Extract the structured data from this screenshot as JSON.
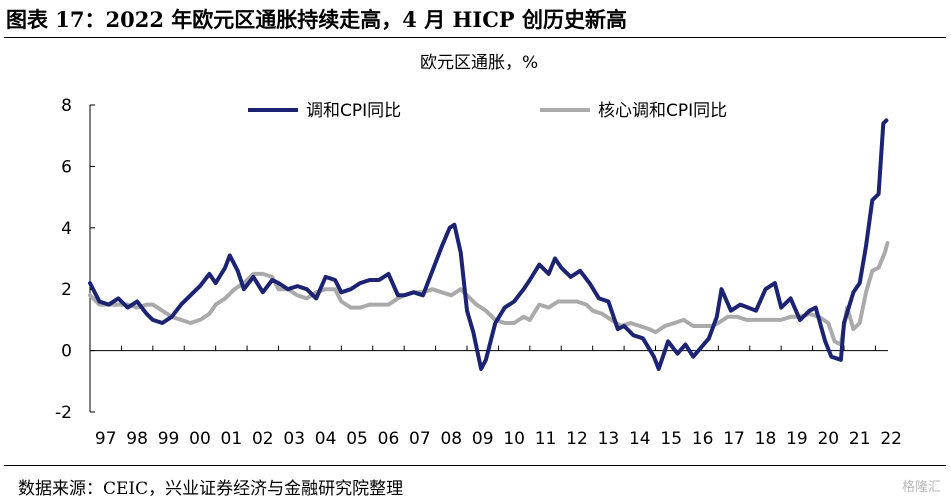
{
  "figure_title": "图表 17：2022 年欧元区通胀持续走高，4 月 HICP 创历史新高",
  "source_note": "数据来源：CEIC，兴业证券经济与金融研究院整理",
  "watermark": "格隆汇",
  "chart_data": {
    "type": "line",
    "title": "",
    "subtitle": "欧元区通胀，%",
    "xlabel": "",
    "ylabel": "",
    "ylim": [
      -2,
      8
    ],
    "yticks": [
      -2,
      0,
      2,
      4,
      6,
      8
    ],
    "x_range": [
      1997.0,
      2022.4
    ],
    "xtick_labels": [
      "97",
      "98",
      "99",
      "00",
      "01",
      "02",
      "03",
      "04",
      "05",
      "06",
      "07",
      "08",
      "09",
      "10",
      "11",
      "12",
      "13",
      "14",
      "15",
      "16",
      "17",
      "18",
      "19",
      "20",
      "21",
      "22"
    ],
    "grid": false,
    "legend_position": "top",
    "series": [
      {
        "name": "调和CPI同比",
        "color": "#1b2372",
        "points": [
          [
            1997.0,
            2.2
          ],
          [
            1997.3,
            1.6
          ],
          [
            1997.6,
            1.5
          ],
          [
            1997.9,
            1.7
          ],
          [
            1998.2,
            1.4
          ],
          [
            1998.5,
            1.6
          ],
          [
            1998.8,
            1.2
          ],
          [
            1999.0,
            1.0
          ],
          [
            1999.3,
            0.9
          ],
          [
            1999.6,
            1.1
          ],
          [
            1999.9,
            1.5
          ],
          [
            2000.2,
            1.8
          ],
          [
            2000.5,
            2.1
          ],
          [
            2000.8,
            2.5
          ],
          [
            2001.0,
            2.2
          ],
          [
            2001.3,
            2.7
          ],
          [
            2001.45,
            3.1
          ],
          [
            2001.7,
            2.6
          ],
          [
            2001.9,
            2.0
          ],
          [
            2002.2,
            2.4
          ],
          [
            2002.5,
            1.9
          ],
          [
            2002.8,
            2.3
          ],
          [
            2003.0,
            2.2
          ],
          [
            2003.3,
            2.0
          ],
          [
            2003.6,
            2.1
          ],
          [
            2003.9,
            2.0
          ],
          [
            2004.2,
            1.7
          ],
          [
            2004.5,
            2.4
          ],
          [
            2004.8,
            2.3
          ],
          [
            2005.0,
            1.9
          ],
          [
            2005.3,
            2.0
          ],
          [
            2005.6,
            2.2
          ],
          [
            2005.9,
            2.3
          ],
          [
            2006.2,
            2.3
          ],
          [
            2006.5,
            2.5
          ],
          [
            2006.8,
            1.8
          ],
          [
            2007.0,
            1.8
          ],
          [
            2007.3,
            1.9
          ],
          [
            2007.6,
            1.8
          ],
          [
            2007.9,
            2.6
          ],
          [
            2008.2,
            3.4
          ],
          [
            2008.45,
            4.0
          ],
          [
            2008.6,
            4.1
          ],
          [
            2008.8,
            3.2
          ],
          [
            2009.0,
            1.3
          ],
          [
            2009.2,
            0.6
          ],
          [
            2009.45,
            -0.6
          ],
          [
            2009.6,
            -0.3
          ],
          [
            2009.9,
            0.9
          ],
          [
            2010.2,
            1.4
          ],
          [
            2010.5,
            1.6
          ],
          [
            2010.8,
            2.0
          ],
          [
            2011.0,
            2.3
          ],
          [
            2011.3,
            2.8
          ],
          [
            2011.6,
            2.5
          ],
          [
            2011.8,
            3.0
          ],
          [
            2012.0,
            2.7
          ],
          [
            2012.3,
            2.4
          ],
          [
            2012.6,
            2.6
          ],
          [
            2012.9,
            2.2
          ],
          [
            2013.2,
            1.7
          ],
          [
            2013.5,
            1.6
          ],
          [
            2013.8,
            0.7
          ],
          [
            2014.0,
            0.8
          ],
          [
            2014.3,
            0.5
          ],
          [
            2014.6,
            0.4
          ],
          [
            2014.95,
            -0.2
          ],
          [
            2015.1,
            -0.6
          ],
          [
            2015.4,
            0.3
          ],
          [
            2015.7,
            -0.1
          ],
          [
            2015.95,
            0.2
          ],
          [
            2016.2,
            -0.2
          ],
          [
            2016.45,
            0.1
          ],
          [
            2016.7,
            0.4
          ],
          [
            2016.95,
            1.1
          ],
          [
            2017.1,
            2.0
          ],
          [
            2017.4,
            1.3
          ],
          [
            2017.7,
            1.5
          ],
          [
            2017.95,
            1.4
          ],
          [
            2018.2,
            1.3
          ],
          [
            2018.5,
            2.0
          ],
          [
            2018.8,
            2.2
          ],
          [
            2019.0,
            1.4
          ],
          [
            2019.3,
            1.7
          ],
          [
            2019.6,
            1.0
          ],
          [
            2019.9,
            1.3
          ],
          [
            2020.1,
            1.4
          ],
          [
            2020.4,
            0.3
          ],
          [
            2020.6,
            -0.2
          ],
          [
            2020.9,
            -0.3
          ],
          [
            2021.0,
            0.9
          ],
          [
            2021.3,
            1.9
          ],
          [
            2021.5,
            2.2
          ],
          [
            2021.7,
            3.4
          ],
          [
            2021.9,
            4.9
          ],
          [
            2022.1,
            5.1
          ],
          [
            2022.25,
            7.4
          ],
          [
            2022.35,
            7.5
          ]
        ]
      },
      {
        "name": "核心调和CPI同比",
        "color": "#aaaaaa",
        "points": [
          [
            1997.0,
            1.8
          ],
          [
            1997.3,
            1.5
          ],
          [
            1997.6,
            1.5
          ],
          [
            1997.9,
            1.5
          ],
          [
            1998.2,
            1.5
          ],
          [
            1998.5,
            1.4
          ],
          [
            1998.8,
            1.5
          ],
          [
            1999.0,
            1.5
          ],
          [
            1999.3,
            1.3
          ],
          [
            1999.6,
            1.1
          ],
          [
            1999.9,
            1.0
          ],
          [
            2000.2,
            0.9
          ],
          [
            2000.5,
            1.0
          ],
          [
            2000.8,
            1.2
          ],
          [
            2001.0,
            1.5
          ],
          [
            2001.3,
            1.7
          ],
          [
            2001.6,
            2.0
          ],
          [
            2001.9,
            2.2
          ],
          [
            2002.2,
            2.5
          ],
          [
            2002.5,
            2.5
          ],
          [
            2002.8,
            2.4
          ],
          [
            2003.0,
            2.0
          ],
          [
            2003.3,
            2.0
          ],
          [
            2003.6,
            1.8
          ],
          [
            2003.9,
            1.7
          ],
          [
            2004.2,
            1.9
          ],
          [
            2004.5,
            2.0
          ],
          [
            2004.8,
            2.0
          ],
          [
            2005.0,
            1.6
          ],
          [
            2005.3,
            1.4
          ],
          [
            2005.6,
            1.4
          ],
          [
            2005.9,
            1.5
          ],
          [
            2006.2,
            1.5
          ],
          [
            2006.5,
            1.5
          ],
          [
            2006.8,
            1.7
          ],
          [
            2007.0,
            1.8
          ],
          [
            2007.3,
            1.9
          ],
          [
            2007.6,
            1.9
          ],
          [
            2007.9,
            2.0
          ],
          [
            2008.2,
            1.9
          ],
          [
            2008.5,
            1.8
          ],
          [
            2008.8,
            2.0
          ],
          [
            2009.0,
            1.8
          ],
          [
            2009.3,
            1.5
          ],
          [
            2009.6,
            1.3
          ],
          [
            2009.9,
            1.0
          ],
          [
            2010.2,
            0.9
          ],
          [
            2010.5,
            0.9
          ],
          [
            2010.8,
            1.1
          ],
          [
            2011.0,
            1.0
          ],
          [
            2011.3,
            1.5
          ],
          [
            2011.6,
            1.4
          ],
          [
            2011.9,
            1.6
          ],
          [
            2012.2,
            1.6
          ],
          [
            2012.5,
            1.6
          ],
          [
            2012.8,
            1.5
          ],
          [
            2013.0,
            1.3
          ],
          [
            2013.3,
            1.2
          ],
          [
            2013.6,
            1.0
          ],
          [
            2013.9,
            0.8
          ],
          [
            2014.2,
            0.9
          ],
          [
            2014.5,
            0.8
          ],
          [
            2014.8,
            0.7
          ],
          [
            2015.0,
            0.6
          ],
          [
            2015.3,
            0.8
          ],
          [
            2015.6,
            0.9
          ],
          [
            2015.9,
            1.0
          ],
          [
            2016.2,
            0.8
          ],
          [
            2016.5,
            0.8
          ],
          [
            2016.8,
            0.8
          ],
          [
            2017.0,
            0.9
          ],
          [
            2017.3,
            1.1
          ],
          [
            2017.6,
            1.1
          ],
          [
            2017.9,
            1.0
          ],
          [
            2018.2,
            1.0
          ],
          [
            2018.5,
            1.0
          ],
          [
            2018.8,
            1.0
          ],
          [
            2019.0,
            1.0
          ],
          [
            2019.3,
            1.1
          ],
          [
            2019.6,
            1.1
          ],
          [
            2019.9,
            1.2
          ],
          [
            2020.2,
            1.1
          ],
          [
            2020.5,
            0.9
          ],
          [
            2020.7,
            0.3
          ],
          [
            2020.9,
            0.2
          ],
          [
            2021.1,
            1.4
          ],
          [
            2021.3,
            0.7
          ],
          [
            2021.5,
            0.9
          ],
          [
            2021.7,
            1.9
          ],
          [
            2021.9,
            2.6
          ],
          [
            2022.1,
            2.7
          ],
          [
            2022.3,
            3.2
          ],
          [
            2022.38,
            3.5
          ]
        ]
      }
    ]
  }
}
